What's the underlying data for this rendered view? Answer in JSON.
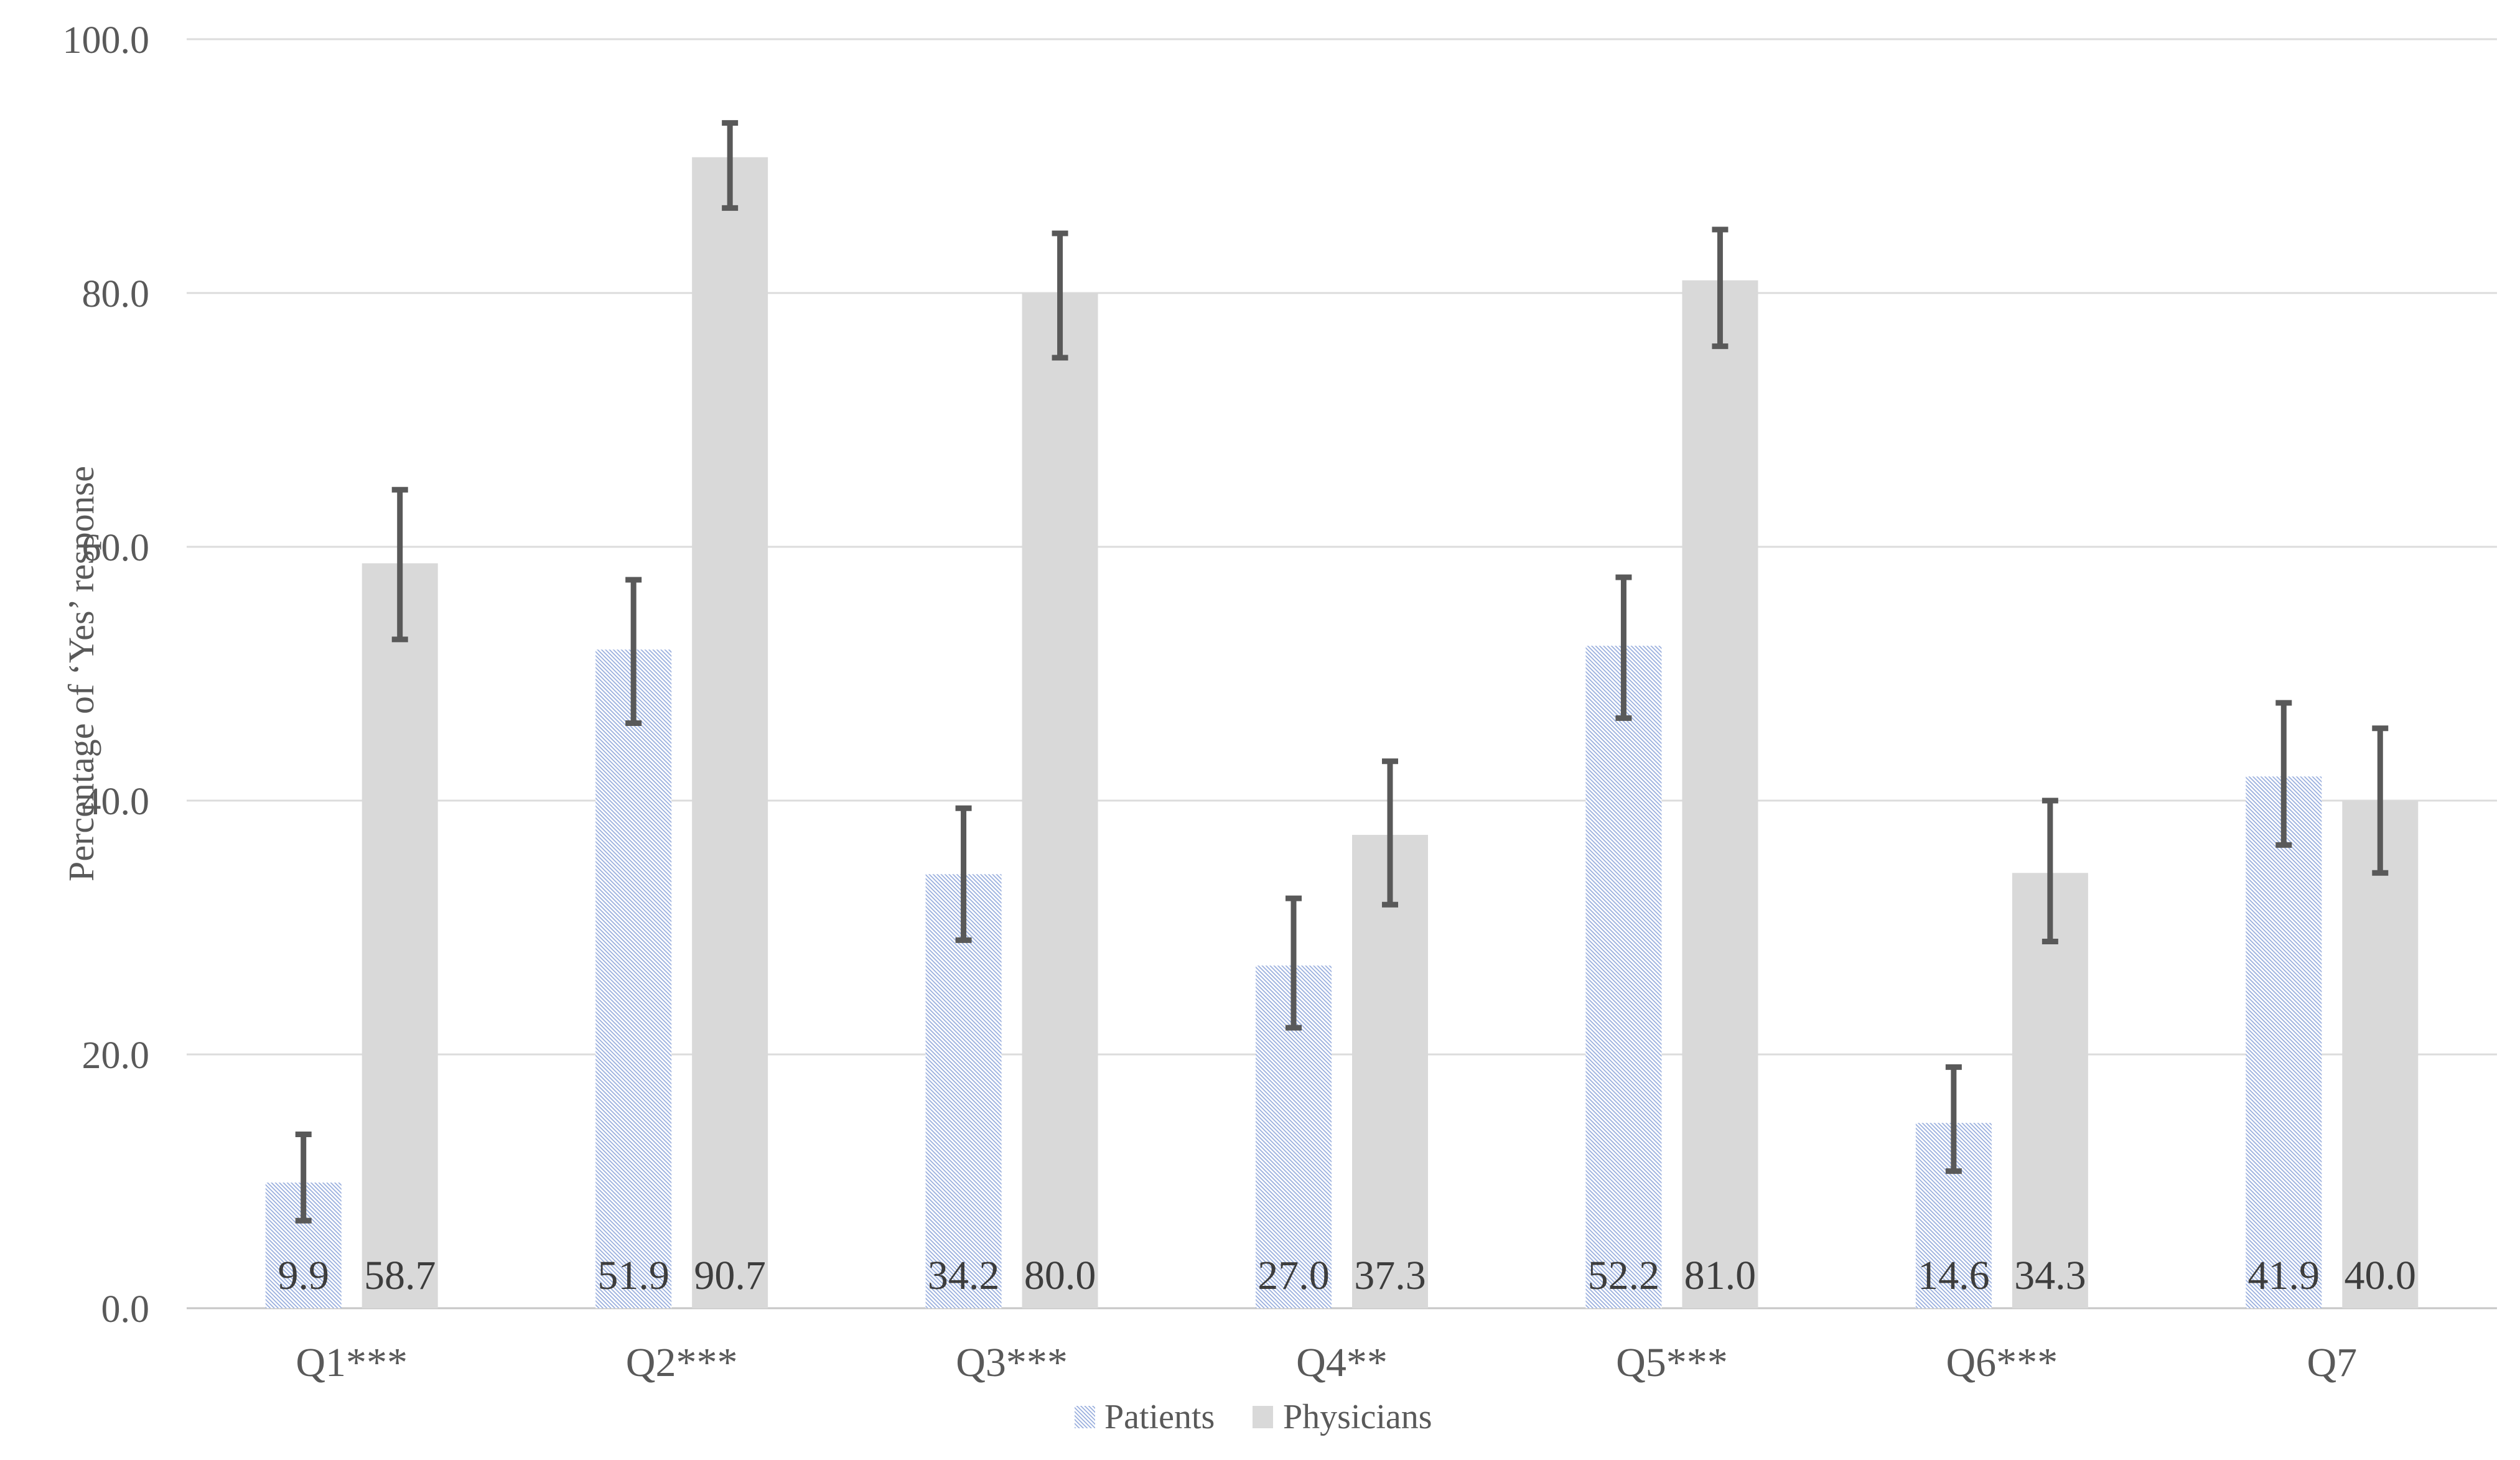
{
  "chart_data": {
    "type": "bar",
    "ylabel": "Percentage of ‘Yes’ response",
    "xlabel": "",
    "categories": [
      "Q1***",
      "Q2***",
      "Q3***",
      "Q4**",
      "Q5***",
      "Q6***",
      "Q7"
    ],
    "series": [
      {
        "name": "Patients",
        "fill_style": "blue-diagonal-hatch",
        "values": [
          9.9,
          51.9,
          34.2,
          27.0,
          52.2,
          14.6,
          41.9
        ],
        "value_labels": [
          "9.9",
          "51.9",
          "34.2",
          "27.0",
          "52.2",
          "14.6",
          "41.9"
        ],
        "error_low": [
          6.9,
          46.1,
          29.0,
          22.1,
          46.5,
          10.8,
          36.5
        ],
        "error_high": [
          13.7,
          57.4,
          39.4,
          32.3,
          57.6,
          19.0,
          47.7
        ]
      },
      {
        "name": "Physicians",
        "fill_style": "solid-gray",
        "values": [
          58.7,
          90.7,
          80.0,
          37.3,
          81.0,
          34.3,
          40.0
        ],
        "value_labels": [
          "58.7",
          "90.7",
          "80.0",
          "37.3",
          "81.0",
          "34.3",
          "40.0"
        ],
        "error_low": [
          52.7,
          86.7,
          74.9,
          31.8,
          75.8,
          28.9,
          34.3
        ],
        "error_high": [
          64.5,
          93.4,
          84.7,
          43.1,
          85.0,
          40.0,
          45.7
        ]
      }
    ],
    "ylim": [
      0,
      100
    ],
    "ytick_step": 20,
    "ytick_labels": [
      "0.0",
      "20.0",
      "40.0",
      "60.0",
      "80.0",
      "100.0"
    ],
    "grid": true,
    "legend_position": "bottom-center",
    "legend_labels": [
      "Patients",
      "Physicians"
    ],
    "colors": {
      "hatch_blue": "#8ba3d9",
      "bar_gray": "#d9d9d9",
      "error_bar": "#595959",
      "gridline": "#dcdcdc",
      "axis_line": "#c6c6c6",
      "tick_text": "#595959",
      "category_text": "#595959",
      "data_label_text": "#3d3d3d",
      "legend_text": "#595959",
      "axis_title_text": "#595959",
      "background": "#ffffff"
    }
  }
}
